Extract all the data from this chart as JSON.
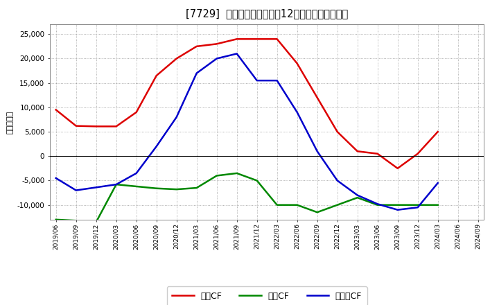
{
  "title": "[7729]  キャッシュフローの12か月移動合計の推移",
  "ylabel": "（百万円）",
  "background_color": "#ffffff",
  "grid_color": "#aaaaaa",
  "x_labels": [
    "2019/06",
    "2019/09",
    "2019/12",
    "2020/03",
    "2020/06",
    "2020/09",
    "2020/12",
    "2021/03",
    "2021/06",
    "2021/09",
    "2021/12",
    "2022/03",
    "2022/06",
    "2022/09",
    "2022/12",
    "2023/03",
    "2023/06",
    "2023/09",
    "2023/12",
    "2024/03",
    "2024/06",
    "2024/09"
  ],
  "operating_cf": [
    9500,
    6200,
    6100,
    6100,
    9000,
    16500,
    20000,
    22500,
    23000,
    24000,
    24000,
    24000,
    19000,
    12000,
    5000,
    1000,
    500,
    -2500,
    500,
    5000,
    null,
    null
  ],
  "investing_cf": [
    -13000,
    -13200,
    -13500,
    -5800,
    -6200,
    -6600,
    -6800,
    -6500,
    -4000,
    -3500,
    -5000,
    -10000,
    -10000,
    -11500,
    -10000,
    -8500,
    -10000,
    -10000,
    -10000,
    -10000,
    null,
    null
  ],
  "free_cf": [
    -4500,
    -7000,
    null,
    -5800,
    -3500,
    2000,
    8000,
    17000,
    20000,
    21000,
    15500,
    15500,
    9000,
    1000,
    -5000,
    -8000,
    -9800,
    -11000,
    -10500,
    -5500,
    null,
    null
  ],
  "operating_color": "#dd0000",
  "investing_color": "#008800",
  "free_color": "#0000cc",
  "ylim": [
    -13000,
    27000
  ],
  "yticks": [
    -10000,
    -5000,
    0,
    5000,
    10000,
    15000,
    20000,
    25000
  ],
  "legend_labels": [
    "営業CF",
    "投資CF",
    "フリーCF"
  ]
}
